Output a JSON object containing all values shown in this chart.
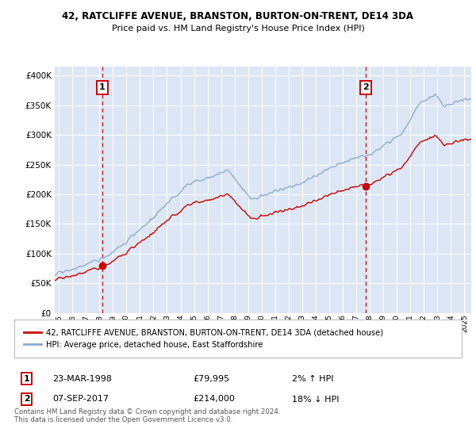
{
  "title1": "42, RATCLIFFE AVENUE, BRANSTON, BURTON-ON-TRENT, DE14 3DA",
  "title2": "Price paid vs. HM Land Registry's House Price Index (HPI)",
  "ylabel_ticks": [
    "£0",
    "£50K",
    "£100K",
    "£150K",
    "£200K",
    "£250K",
    "£300K",
    "£350K",
    "£400K"
  ],
  "ylabel_values": [
    0,
    50000,
    100000,
    150000,
    200000,
    250000,
    300000,
    350000,
    400000
  ],
  "ylim": [
    0,
    415000
  ],
  "xlim_start": 1994.7,
  "xlim_end": 2025.5,
  "background_color": "#dce6f5",
  "grid_color": "#ffffff",
  "line1_color": "#cc0000",
  "line2_color": "#88aacc",
  "sale1_x": 1998.22,
  "sale1_y": 79995,
  "sale1_label": "1",
  "sale2_x": 2017.68,
  "sale2_y": 214000,
  "sale2_label": "2",
  "legend_line1": "42, RATCLIFFE AVENUE, BRANSTON, BURTON-ON-TRENT, DE14 3DA (detached house)",
  "legend_line2": "HPI: Average price, detached house, East Staffordshire",
  "note1_label": "1",
  "note1_date": "23-MAR-1998",
  "note1_price": "£79,995",
  "note1_hpi": "2% ↑ HPI",
  "note2_label": "2",
  "note2_date": "07-SEP-2017",
  "note2_price": "£214,000",
  "note2_hpi": "18% ↓ HPI",
  "footer": "Contains HM Land Registry data © Crown copyright and database right 2024.\nThis data is licensed under the Open Government Licence v3.0.",
  "dashed_color": "#cc0000",
  "marker_color": "#cc0000",
  "hpi_seed": 17,
  "prop_seed": 99
}
